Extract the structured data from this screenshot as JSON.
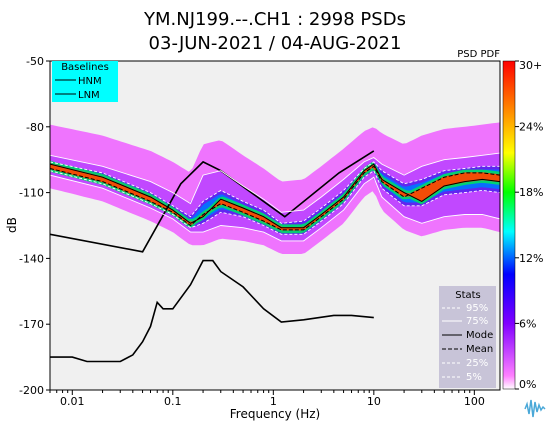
{
  "chart_data": {
    "type": "heatmap",
    "title": "YM.NJ199.--.CH1 : 2998 PSDs",
    "subtitle": "03-JUN-2021 / 04-AUG-2021",
    "xlabel": "Frequency (Hz)",
    "ylabel": "dB",
    "x_scale": "log",
    "xlim": [
      0.006,
      180
    ],
    "ylim": [
      -200,
      -50
    ],
    "xticks": [
      {
        "value": 0.01,
        "label": "0.01"
      },
      {
        "value": 0.1,
        "label": "0.1"
      },
      {
        "value": 1,
        "label": "1"
      },
      {
        "value": 10,
        "label": "10"
      },
      {
        "value": 100,
        "label": "100"
      }
    ],
    "yticks": [
      -50,
      -80,
      -110,
      -140,
      -170,
      -200
    ],
    "colorbar": {
      "title": "PSD PDF",
      "ticks": [
        "30+",
        "24%",
        "18%",
        "12%",
        "6%",
        "0%"
      ]
    },
    "baselines_legend": {
      "title": "Baselines",
      "entries": [
        "HNM",
        "LNM"
      ],
      "bg_color": "#00ffff"
    },
    "stats_legend": {
      "title": "Stats",
      "entries": [
        "95%",
        "75%",
        "Mode",
        "Mean",
        "25%",
        "5%"
      ],
      "bg_color": "#c8c4d8"
    },
    "series": [
      {
        "name": "HNM",
        "x": [
          0.006,
          0.05,
          0.12,
          0.2,
          0.3,
          1.3,
          4.5,
          10
        ],
        "y": [
          -129,
          -137,
          -106,
          -96,
          -100,
          -121,
          -101,
          -91
        ]
      },
      {
        "name": "LNM",
        "x": [
          0.006,
          0.01,
          0.014,
          0.03,
          0.04,
          0.05,
          0.06,
          0.07,
          0.08,
          0.1,
          0.15,
          0.2,
          0.25,
          0.3,
          0.5,
          0.8,
          1.2,
          2,
          4,
          6,
          10
        ],
        "y": [
          -185,
          -185,
          -187,
          -187,
          -184,
          -178,
          -171,
          -160,
          -163,
          -163,
          -152,
          -141,
          -141,
          -146,
          -153,
          -163,
          -169,
          -168,
          -166,
          -166,
          -167
        ]
      },
      {
        "name": "Mode",
        "x": [
          0.006,
          0.02,
          0.06,
          0.1,
          0.15,
          0.2,
          0.3,
          0.5,
          0.8,
          1.2,
          2,
          3,
          5,
          8,
          10,
          12,
          20,
          30,
          50,
          80,
          120,
          180
        ],
        "y": [
          -97,
          -103,
          -112,
          -118,
          -124,
          -121,
          -113,
          -117,
          -121,
          -126,
          -126,
          -120,
          -112,
          -100,
          -97,
          -104,
          -110,
          -114,
          -107,
          -105,
          -104,
          -105
        ]
      },
      {
        "name": "Mean",
        "x": [
          0.006,
          0.02,
          0.06,
          0.1,
          0.15,
          0.2,
          0.3,
          0.5,
          0.8,
          1.2,
          2,
          3,
          5,
          8,
          10,
          12,
          20,
          30,
          50,
          80,
          120,
          180
        ],
        "y": [
          -99,
          -105,
          -114,
          -119,
          -125,
          -120,
          -115,
          -119,
          -123,
          -127,
          -127,
          -121,
          -113,
          -101,
          -98,
          -105,
          -112,
          -108,
          -103,
          -101,
          -101,
          -102
        ]
      },
      {
        "name": "95%",
        "x": [
          0.006,
          0.02,
          0.06,
          0.1,
          0.15,
          0.2,
          0.3,
          0.5,
          0.8,
          1.2,
          2,
          3,
          5,
          8,
          10,
          12,
          20,
          30,
          50,
          80,
          120,
          180
        ],
        "y": [
          -93,
          -98,
          -105,
          -110,
          -115,
          -102,
          -100,
          -107,
          -113,
          -119,
          -118,
          -112,
          -104,
          -96,
          -94,
          -97,
          -102,
          -98,
          -95,
          -94,
          -93,
          -92
        ]
      },
      {
        "name": "75%",
        "x": [
          0.006,
          0.02,
          0.06,
          0.1,
          0.15,
          0.2,
          0.3,
          0.5,
          0.8,
          1.2,
          2,
          3,
          5,
          8,
          10,
          12,
          20,
          30,
          50,
          80,
          120,
          180
        ],
        "y": [
          -96,
          -101,
          -110,
          -116,
          -121,
          -114,
          -109,
          -114,
          -118,
          -124,
          -123,
          -117,
          -109,
          -99,
          -96,
          -100,
          -106,
          -104,
          -100,
          -99,
          -98,
          -98
        ]
      },
      {
        "name": "25%",
        "x": [
          0.006,
          0.02,
          0.06,
          0.1,
          0.15,
          0.2,
          0.3,
          0.5,
          0.8,
          1.2,
          2,
          3,
          5,
          8,
          10,
          12,
          20,
          30,
          50,
          80,
          120,
          180
        ],
        "y": [
          -100,
          -106,
          -115,
          -120,
          -126,
          -124,
          -119,
          -121,
          -125,
          -129,
          -129,
          -123,
          -115,
          -103,
          -100,
          -108,
          -116,
          -116,
          -111,
          -110,
          -109,
          -110
        ]
      },
      {
        "name": "5%",
        "x": [
          0.006,
          0.02,
          0.06,
          0.1,
          0.15,
          0.2,
          0.3,
          0.5,
          0.8,
          1.2,
          2,
          3,
          5,
          8,
          10,
          12,
          20,
          30,
          50,
          80,
          120,
          180
        ],
        "y": [
          -102,
          -108,
          -117,
          -122,
          -128,
          -128,
          -125,
          -126,
          -128,
          -132,
          -132,
          -126,
          -118,
          -106,
          -103,
          -112,
          -121,
          -124,
          -121,
          -120,
          -120,
          -122
        ]
      }
    ]
  }
}
